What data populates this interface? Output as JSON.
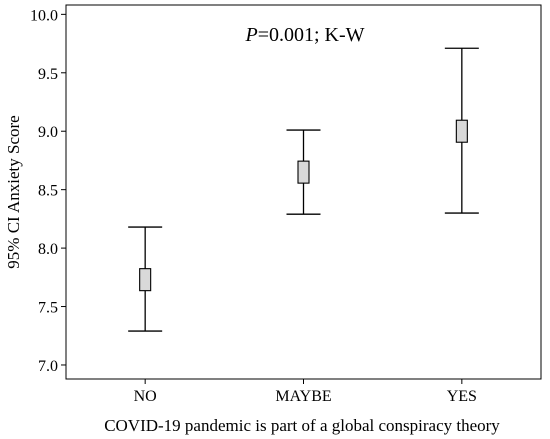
{
  "chart_data": {
    "type": "errorbar",
    "annotation_p": "P",
    "annotation_rest": "=0.001; K-W",
    "xlabel": "COVID-19 pandemic is part of a global conspiracy theory",
    "ylabel": "95% CI Anxiety Score",
    "categories": [
      "NO",
      "MAYBE",
      "YES"
    ],
    "mean": [
      7.73,
      8.65,
      9.0
    ],
    "ci_lower": [
      7.29,
      8.29,
      8.3
    ],
    "ci_upper": [
      8.18,
      9.01,
      9.71
    ],
    "ylim": [
      6.88,
      10.08
    ],
    "yticks": [
      7.0,
      7.5,
      8.0,
      8.5,
      9.0,
      9.5,
      10.0
    ],
    "ytick_labels": [
      "7.0",
      "7.5",
      "8.0",
      "8.5",
      "9.0",
      "9.5",
      "10.0"
    ],
    "grid": false,
    "legend": "none"
  }
}
